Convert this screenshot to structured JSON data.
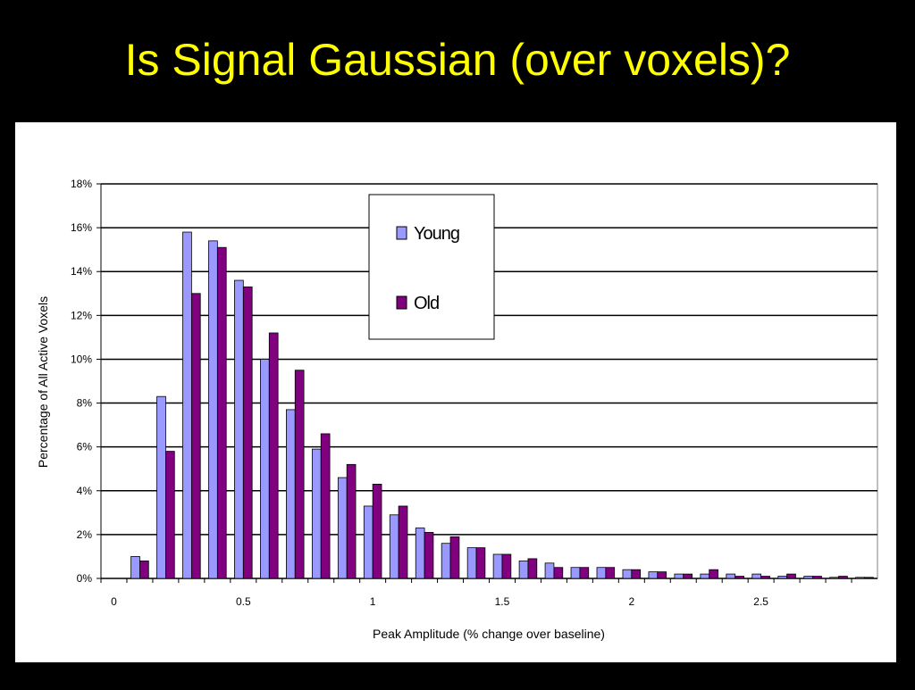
{
  "slide_title": "Is Signal Gaussian (over voxels)?",
  "chart_data": {
    "type": "bar",
    "xlabel": "Peak Amplitude (% change over baseline)",
    "ylabel": "Percentage of All Active Voxels",
    "categories": [
      "0",
      null,
      null,
      null,
      null,
      "0.5",
      null,
      null,
      null,
      null,
      "1",
      null,
      null,
      null,
      null,
      "1.5",
      null,
      null,
      null,
      null,
      "2",
      null,
      null,
      null,
      null,
      "2.5",
      null,
      null,
      null,
      null
    ],
    "series": [
      {
        "name": "Young",
        "color": "#9999ff",
        "values": [
          0,
          1.0,
          8.3,
          15.8,
          15.4,
          13.6,
          10.0,
          7.7,
          5.9,
          4.6,
          3.3,
          2.9,
          2.3,
          1.6,
          1.4,
          1.1,
          0.8,
          0.7,
          0.5,
          0.5,
          0.4,
          0.3,
          0.2,
          0.2,
          0.2,
          0.2,
          0.1,
          0.1,
          0.05,
          0.05
        ]
      },
      {
        "name": "Old",
        "color": "#800080",
        "values": [
          0,
          0.8,
          5.8,
          13.0,
          15.1,
          13.3,
          11.2,
          9.5,
          6.6,
          5.2,
          4.3,
          3.3,
          2.1,
          1.9,
          1.4,
          1.1,
          0.9,
          0.5,
          0.5,
          0.5,
          0.4,
          0.3,
          0.2,
          0.4,
          0.1,
          0.1,
          0.2,
          0.1,
          0.1,
          0.05
        ]
      }
    ],
    "ylim": [
      0,
      18
    ],
    "yticks": [
      {
        "value": 0,
        "label": "0%"
      },
      {
        "value": 2,
        "label": "2%"
      },
      {
        "value": 4,
        "label": "4%"
      },
      {
        "value": 6,
        "label": "6%"
      },
      {
        "value": 8,
        "label": "8%"
      },
      {
        "value": 10,
        "label": "10%"
      },
      {
        "value": 12,
        "label": "12%"
      },
      {
        "value": 14,
        "label": "14%"
      },
      {
        "value": 16,
        "label": "16%"
      },
      {
        "value": 18,
        "label": "18%"
      }
    ],
    "grid": true
  }
}
